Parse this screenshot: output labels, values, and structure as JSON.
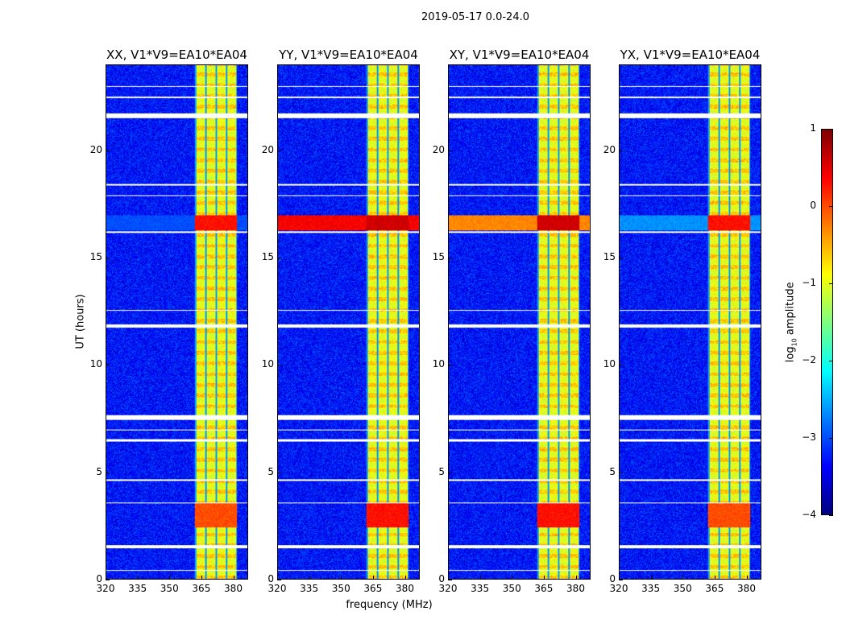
{
  "chart_data": {
    "type": "heatmap",
    "suptitle": "2019-05-17 0.0-24.0",
    "xlabel": "frequency (MHz)",
    "ylabel": "UT (hours)",
    "xlim": [
      320,
      387
    ],
    "ylim": [
      0,
      24
    ],
    "xticks": [
      320,
      335,
      350,
      365,
      380
    ],
    "yticks": [
      0,
      5,
      10,
      15,
      20
    ],
    "panels": [
      {
        "title": "XX, V1*V9=EA10*EA04",
        "rfi_strength": 0.0
      },
      {
        "title": "YY, V1*V9=EA10*EA04",
        "rfi_strength": 1.0
      },
      {
        "title": "XY, V1*V9=EA10*EA04",
        "rfi_strength": 0.8
      },
      {
        "title": "YX, V1*V9=EA10*EA04",
        "rfi_strength": 0.1
      }
    ],
    "band_mhz": [
      362,
      382
    ],
    "subband_edges_mhz": [
      362,
      367,
      372,
      377,
      382
    ],
    "flagged_hours": [
      [
        21.55,
        21.75
      ],
      [
        11.75,
        11.9
      ],
      [
        7.45,
        7.65
      ],
      [
        6.45,
        6.55
      ],
      [
        1.45,
        1.6
      ],
      [
        23.0,
        23.05
      ],
      [
        22.5,
        22.55
      ],
      [
        18.4,
        18.45
      ],
      [
        17.9,
        17.95
      ],
      [
        16.2,
        16.25
      ],
      [
        12.55,
        12.6
      ],
      [
        6.95,
        7.0
      ],
      [
        4.6,
        4.65
      ],
      [
        3.55,
        3.6
      ],
      [
        0.4,
        0.45
      ]
    ],
    "rfi_events": [
      {
        "hours": [
          16.3,
          17.0
        ],
        "level": 0.6,
        "broadband": true
      },
      {
        "hours": [
          2.4,
          3.6
        ],
        "level": 0.3,
        "broadband": false
      }
    ],
    "colorbar": {
      "label": "log₁₀ amplitude",
      "label_main": "log",
      "label_sub": "10",
      "label_tail": " amplitude",
      "range": [
        -4,
        1
      ],
      "ticks": [
        "1",
        "0",
        "−1",
        "−2",
        "−3",
        "−4"
      ],
      "colormap": "jet"
    }
  }
}
